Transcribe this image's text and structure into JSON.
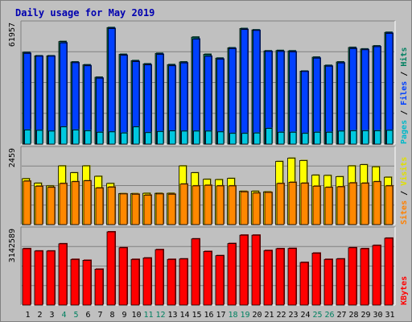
{
  "title": "Daily usage for May 2019",
  "chart_data": [
    {
      "type": "bar",
      "panel": "hits-files-pages",
      "max_label": "61957",
      "legend": [
        {
          "text": "Pages",
          "color": "#00b8c8"
        },
        {
          "text": " / ",
          "color": "#000000"
        },
        {
          "text": "Files",
          "color": "#0040ff"
        },
        {
          "text": " / ",
          "color": "#000000"
        },
        {
          "text": "Hits",
          "color": "#008060"
        }
      ],
      "categories": [
        "1",
        "2",
        "3",
        "4",
        "5",
        "6",
        "7",
        "8",
        "9",
        "10",
        "11",
        "12",
        "13",
        "14",
        "15",
        "16",
        "17",
        "18",
        "19",
        "20",
        "21",
        "22",
        "23",
        "24",
        "25",
        "26",
        "27",
        "28",
        "29",
        "30",
        "31"
      ],
      "weekend_days": [
        "4",
        "5",
        "11",
        "12",
        "18",
        "19",
        "25",
        "26"
      ],
      "ylim": [
        0,
        61957
      ],
      "series": [
        {
          "name": "Hits",
          "color": "#008060",
          "values": [
            48000,
            46200,
            46200,
            53700,
            43000,
            41500,
            35000,
            61000,
            47000,
            43700,
            42000,
            47500,
            41600,
            43000,
            56000,
            47000,
            45000,
            50400,
            60500,
            59800,
            48800,
            49000,
            48800,
            38200,
            45500,
            41200,
            43000,
            50600,
            49800,
            51400,
            58500
          ]
        },
        {
          "name": "Files",
          "color": "#0040ff",
          "values": [
            47500,
            46000,
            46000,
            53000,
            42600,
            41000,
            34500,
            60500,
            46500,
            43200,
            41500,
            47000,
            41000,
            42500,
            55000,
            46000,
            44500,
            50000,
            60000,
            59500,
            48500,
            48500,
            48300,
            38000,
            45000,
            40800,
            42500,
            50000,
            49400,
            51000,
            58000
          ]
        },
        {
          "name": "Pages",
          "color": "#00c8e0",
          "values": [
            7400,
            7200,
            6800,
            9000,
            7400,
            7000,
            6200,
            6400,
            5800,
            9000,
            6000,
            6600,
            6900,
            6800,
            6800,
            6800,
            6400,
            5600,
            5600,
            5800,
            8200,
            6200,
            6200,
            5600,
            6200,
            6200,
            6800,
            7000,
            7000,
            7000,
            7200
          ]
        }
      ]
    },
    {
      "type": "bar",
      "panel": "visits-sites",
      "max_label": "2459",
      "legend": [
        {
          "text": "Sites",
          "color": "#ff8000"
        },
        {
          "text": " / ",
          "color": "#000000"
        },
        {
          "text": "Visits",
          "color": "#e0e000"
        }
      ],
      "ylim": [
        0,
        2459
      ],
      "series": [
        {
          "name": "Visits",
          "color": "#ffff00",
          "values": [
            1540,
            1390,
            1300,
            1970,
            1740,
            1970,
            1620,
            1380,
            1040,
            1040,
            1050,
            1050,
            1050,
            1970,
            1740,
            1520,
            1510,
            1550,
            1120,
            1120,
            1100,
            2120,
            2230,
            2150,
            1660,
            1650,
            1610,
            1970,
            2010,
            1940,
            1590
          ]
        },
        {
          "name": "Sites",
          "color": "#ff8800",
          "values": [
            1460,
            1290,
            1250,
            1380,
            1440,
            1470,
            1230,
            1260,
            1030,
            1020,
            990,
            1030,
            1020,
            1360,
            1300,
            1320,
            1300,
            1300,
            1100,
            1060,
            1080,
            1380,
            1420,
            1390,
            1290,
            1250,
            1270,
            1400,
            1390,
            1440,
            1300
          ]
        }
      ]
    },
    {
      "type": "bar",
      "panel": "kbytes",
      "max_label": "3142589",
      "legend": [
        {
          "text": "KBytes",
          "color": "#ff0000"
        }
      ],
      "ylim": [
        0,
        3142589
      ],
      "series": [
        {
          "name": "KBytes",
          "color": "#ff0000",
          "values": [
            2420000,
            2320000,
            2320000,
            2630000,
            1960000,
            1920000,
            1540000,
            3142589,
            2460000,
            1960000,
            2020000,
            2380000,
            1960000,
            1980000,
            2840000,
            2300000,
            2120000,
            2640000,
            3000000,
            3000000,
            2340000,
            2420000,
            2430000,
            1830000,
            2230000,
            1960000,
            1980000,
            2460000,
            2420000,
            2560000,
            2870000
          ]
        }
      ]
    }
  ]
}
